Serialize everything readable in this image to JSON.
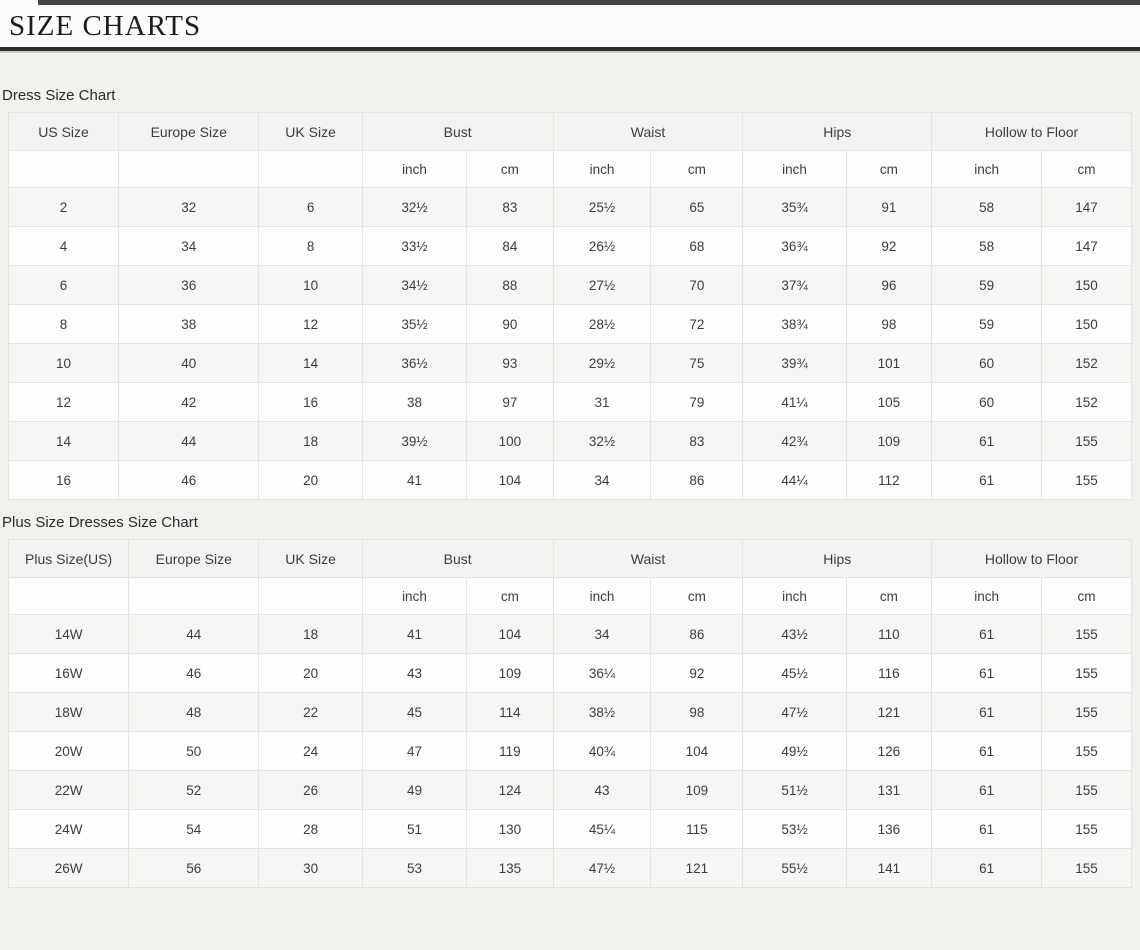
{
  "page": {
    "title": "SIZE CHARTS"
  },
  "dress_chart": {
    "label": "Dress Size Chart",
    "single_columns": [
      "US Size",
      "Europe Size",
      "UK Size"
    ],
    "group_columns": [
      "Bust",
      "Waist",
      "Hips",
      "Hollow to Floor"
    ],
    "units": [
      "inch",
      "cm"
    ],
    "rows": [
      [
        "2",
        "32",
        "6",
        "32½",
        "83",
        "25½",
        "65",
        "35¾",
        "91",
        "58",
        "147"
      ],
      [
        "4",
        "34",
        "8",
        "33½",
        "84",
        "26½",
        "68",
        "36¾",
        "92",
        "58",
        "147"
      ],
      [
        "6",
        "36",
        "10",
        "34½",
        "88",
        "27½",
        "70",
        "37¾",
        "96",
        "59",
        "150"
      ],
      [
        "8",
        "38",
        "12",
        "35½",
        "90",
        "28½",
        "72",
        "38¾",
        "98",
        "59",
        "150"
      ],
      [
        "10",
        "40",
        "14",
        "36½",
        "93",
        "29½",
        "75",
        "39¾",
        "101",
        "60",
        "152"
      ],
      [
        "12",
        "42",
        "16",
        "38",
        "97",
        "31",
        "79",
        "41¼",
        "105",
        "60",
        "152"
      ],
      [
        "14",
        "44",
        "18",
        "39½",
        "100",
        "32½",
        "83",
        "42¾",
        "109",
        "61",
        "155"
      ],
      [
        "16",
        "46",
        "20",
        "41",
        "104",
        "34",
        "86",
        "44¼",
        "112",
        "61",
        "155"
      ]
    ]
  },
  "plus_chart": {
    "label": "Plus Size Dresses Size Chart",
    "single_columns": [
      "Plus Size(US)",
      "Europe Size",
      "UK Size"
    ],
    "group_columns": [
      "Bust",
      "Waist",
      "Hips",
      "Hollow to Floor"
    ],
    "units": [
      "inch",
      "cm"
    ],
    "rows": [
      [
        "14W",
        "44",
        "18",
        "41",
        "104",
        "34",
        "86",
        "43½",
        "110",
        "61",
        "155"
      ],
      [
        "16W",
        "46",
        "20",
        "43",
        "109",
        "36¼",
        "92",
        "45½",
        "116",
        "61",
        "155"
      ],
      [
        "18W",
        "48",
        "22",
        "45",
        "114",
        "38½",
        "98",
        "47½",
        "121",
        "61",
        "155"
      ],
      [
        "20W",
        "50",
        "24",
        "47",
        "119",
        "40¾",
        "104",
        "49½",
        "126",
        "61",
        "155"
      ],
      [
        "22W",
        "52",
        "26",
        "49",
        "124",
        "43",
        "109",
        "51½",
        "131",
        "61",
        "155"
      ],
      [
        "24W",
        "54",
        "28",
        "51",
        "130",
        "45¼",
        "115",
        "53½",
        "136",
        "61",
        "155"
      ],
      [
        "26W",
        "56",
        "30",
        "53",
        "135",
        "47½",
        "121",
        "55½",
        "141",
        "61",
        "155"
      ]
    ]
  },
  "colors": {
    "page_background": "#f2f1ee",
    "header_row_background": "#f3f2f0",
    "stripe_row_background": "#f7f6f4",
    "cell_background": "#fdfdfd",
    "border": "#e5e3e0",
    "title_rule": "#2e2e2e"
  }
}
